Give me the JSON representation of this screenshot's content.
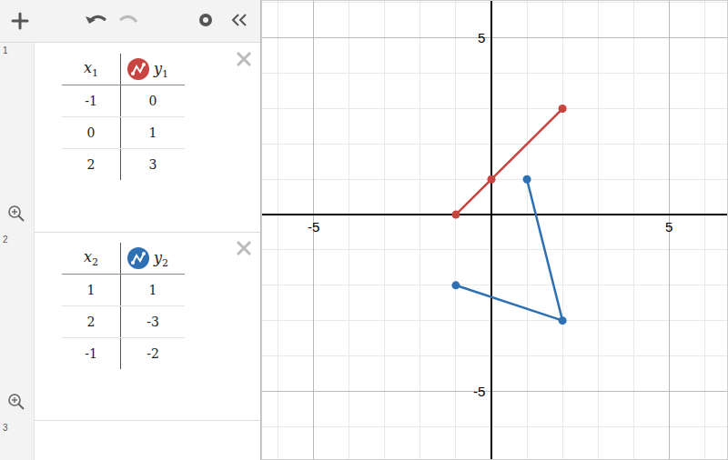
{
  "screen": {
    "expressions": [
      {
        "index": "1",
        "table": {
          "columns": [
            {
              "name": "x",
              "subscript": "1"
            },
            {
              "name": "y",
              "subscript": "1"
            }
          ],
          "rows": [
            [
              -1,
              0
            ],
            [
              0,
              1
            ],
            [
              2,
              3
            ]
          ],
          "color": "#c74440"
        }
      },
      {
        "index": "2",
        "table": {
          "columns": [
            {
              "name": "x",
              "subscript": "2"
            },
            {
              "name": "y",
              "subscript": "2"
            }
          ],
          "rows": [
            [
              1,
              1
            ],
            [
              2,
              -3
            ],
            [
              -1,
              -2
            ]
          ],
          "color": "#2d70b3"
        }
      },
      {
        "index": "3"
      }
    ]
  },
  "chart_data": {
    "type": "line",
    "marker": "circle",
    "grid": true,
    "xlim": [
      -6.45,
      6.63
    ],
    "ylim": [
      -6.92,
      6.05
    ],
    "xticks": [
      -5,
      5
    ],
    "yticks": [
      -5,
      5
    ],
    "series": [
      {
        "name": "y1",
        "color": "#c74440",
        "x": [
          -1,
          0,
          2
        ],
        "values": [
          0,
          1,
          3
        ]
      },
      {
        "name": "y2",
        "color": "#2d70b3",
        "x": [
          1,
          2,
          -1
        ],
        "values": [
          1,
          -3,
          -2
        ]
      }
    ]
  }
}
